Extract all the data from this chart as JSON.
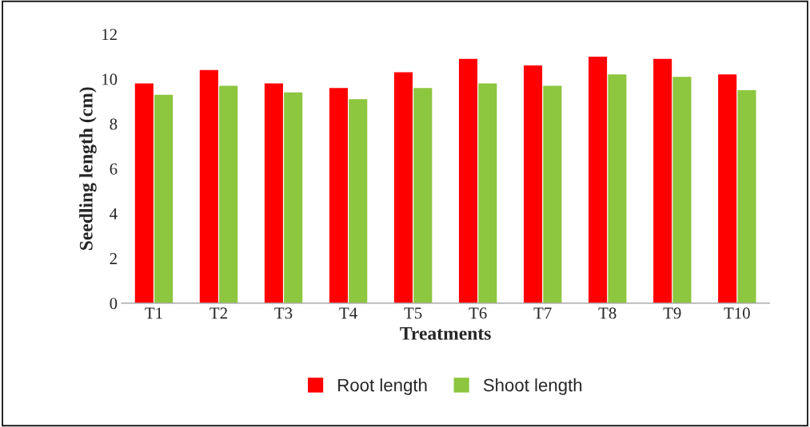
{
  "chart_data": {
    "type": "bar",
    "xlabel": "Treatments",
    "ylabel": "Seedling length (cm)",
    "categories": [
      "T1",
      "T2",
      "T3",
      "T4",
      "T5",
      "T6",
      "T7",
      "T8",
      "T9",
      "T10"
    ],
    "series": [
      {
        "name": "Root length",
        "color": "#ff0000",
        "values": [
          9.8,
          10.4,
          9.8,
          9.6,
          10.3,
          10.9,
          10.6,
          11.0,
          10.9,
          10.2
        ]
      },
      {
        "name": "Shoot length",
        "color": "#8dc63f",
        "values": [
          9.3,
          9.7,
          9.4,
          9.1,
          9.6,
          9.8,
          9.7,
          10.2,
          10.1,
          9.5
        ]
      }
    ],
    "ylim": [
      0,
      12
    ],
    "yticks": [
      0,
      2,
      4,
      6,
      8,
      10,
      12
    ],
    "grid": false,
    "legend": "bottom"
  }
}
